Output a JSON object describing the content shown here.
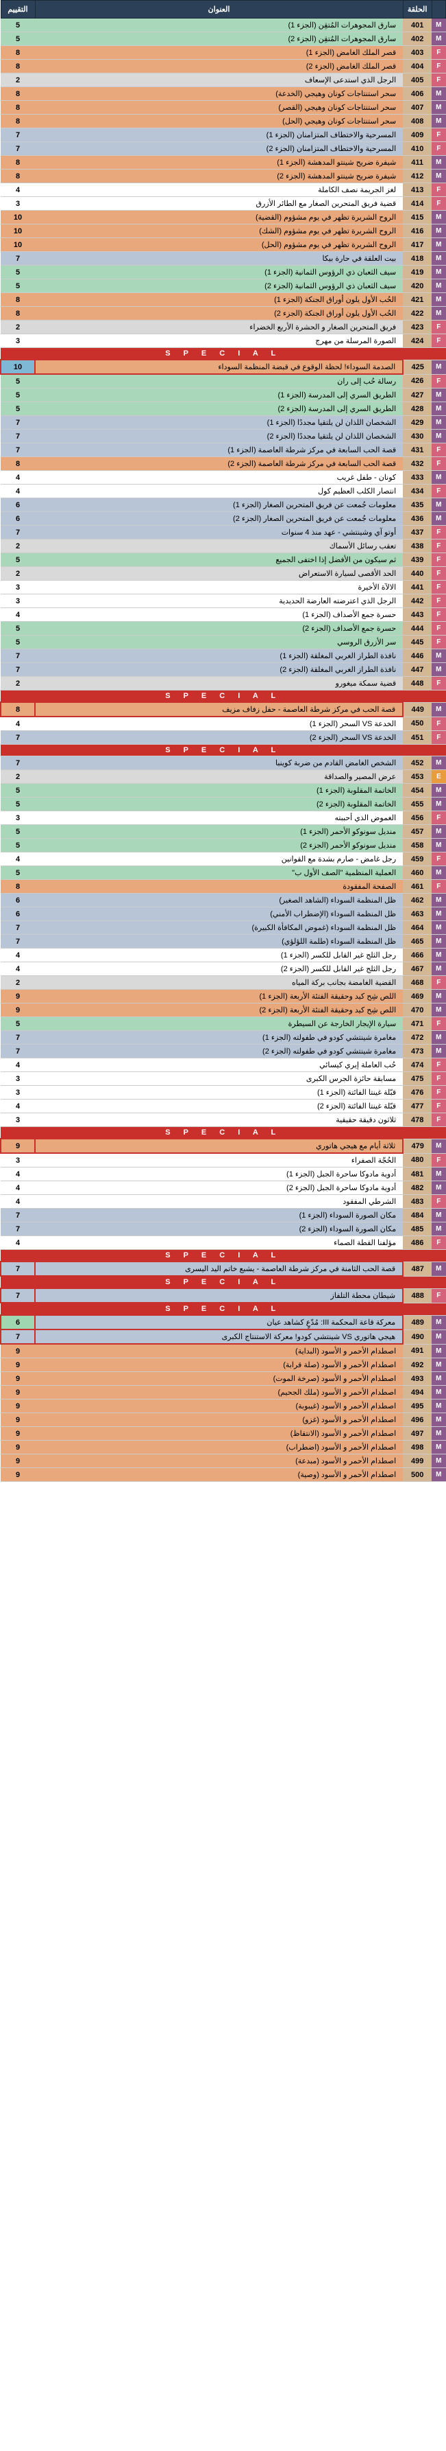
{
  "headers": {
    "ep": "الحلقة",
    "title": "العنوان",
    "rating": "التقييم"
  },
  "special": "S P E C I A L",
  "rows": [
    {
      "ep": 401,
      "m": "M",
      "title": "سارق المجوهرات المُتقِن (الجزء 1)",
      "r": 5,
      "bg": "green"
    },
    {
      "ep": 402,
      "m": "M",
      "title": "سارق المجوهرات المُتقِن (الجزء 2)",
      "r": 5,
      "bg": "green"
    },
    {
      "ep": 403,
      "m": "F",
      "title": "قصر الملك الغامض (الجزء 1)",
      "r": 8,
      "bg": "orange"
    },
    {
      "ep": 404,
      "m": "F",
      "title": "قصر الملك الغامض (الجزء 2)",
      "r": 8,
      "bg": "orange"
    },
    {
      "ep": 405,
      "m": "F",
      "title": "الرجل الذي استدعى الإسعاف",
      "r": 2,
      "bg": "gray"
    },
    {
      "ep": 406,
      "m": "M",
      "title": "سحر استنتاجات كونان وهيجي (الخدعة)",
      "r": 8,
      "bg": "orange"
    },
    {
      "ep": 407,
      "m": "M",
      "title": "سحر استنتاجات كونان وهيجي (القصر)",
      "r": 8,
      "bg": "orange"
    },
    {
      "ep": 408,
      "m": "M",
      "title": "سحر استنتاجات كونان وهيجي (الحل)",
      "r": 8,
      "bg": "orange"
    },
    {
      "ep": 409,
      "m": "F",
      "title": "المسرحية والاختطاف المتزامنان (الجزء 1)",
      "r": 7,
      "bg": "blue"
    },
    {
      "ep": 410,
      "m": "F",
      "title": "المسرحية والاختطاف المتزامنان (الجزء 2)",
      "r": 7,
      "bg": "blue"
    },
    {
      "ep": 411,
      "m": "M",
      "title": "شيفرة ضريح شينتو المدهشة (الجزء 1)",
      "r": 8,
      "bg": "orange"
    },
    {
      "ep": 412,
      "m": "M",
      "title": "شيفرة ضريح شينتو المدهشة (الجزء 2)",
      "r": 8,
      "bg": "orange"
    },
    {
      "ep": 413,
      "m": "F",
      "title": "لغز الجريمة نصف الكاملة",
      "r": 4,
      "bg": "white"
    },
    {
      "ep": 414,
      "m": "F",
      "title": "قضية فريق المتحرين الصغار مع الطائر الأزرق",
      "r": 3,
      "bg": "white"
    },
    {
      "ep": 415,
      "m": "M",
      "title": "الروح الشريرة تظهر في يوم مشؤوم (القضية)",
      "r": 10,
      "bg": "orange"
    },
    {
      "ep": 416,
      "m": "M",
      "title": "الروح الشريرة تظهر في يوم مشؤوم (الشك)",
      "r": 10,
      "bg": "orange"
    },
    {
      "ep": 417,
      "m": "M",
      "title": "الروح الشريرة تظهر في يوم مشؤوم (الحل)",
      "r": 10,
      "bg": "orange"
    },
    {
      "ep": 418,
      "m": "M",
      "title": "بيت العلقة في حارة بيكا",
      "r": 7,
      "bg": "blue"
    },
    {
      "ep": 419,
      "m": "M",
      "title": "سيف الثعبان ذي الرؤوس الثمانية (الجزء 1)",
      "r": 5,
      "bg": "green"
    },
    {
      "ep": 420,
      "m": "M",
      "title": "سيف الثعبان ذي الرؤوس الثمانية (الجزء 2)",
      "r": 5,
      "bg": "green"
    },
    {
      "ep": 421,
      "m": "M",
      "title": "الحُب الأول يلون أوراق الجنكة (الجزء 1)",
      "r": 8,
      "bg": "orange"
    },
    {
      "ep": 422,
      "m": "M",
      "title": "الحُب الأول يلون أوراق الجنكة (الجزء 2)",
      "r": 8,
      "bg": "orange"
    },
    {
      "ep": 423,
      "m": "F",
      "title": "فريق المتحرين الصغار و الحشرة الأربع الخضراء",
      "r": 2,
      "bg": "gray"
    },
    {
      "ep": 424,
      "m": "F",
      "title": "الصورة المرسلة من مهرج",
      "r": 3,
      "bg": "white"
    },
    {
      "special": true
    },
    {
      "ep": 425,
      "m": "M",
      "title": "الصدمة السوداء! لحظة الوقوع في قبضة المنظمة السوداء",
      "r": 10,
      "bg": "orange",
      "hl": true,
      "rb": "blue"
    },
    {
      "ep": 426,
      "m": "F",
      "title": "رسالة حُب إلى ران",
      "r": 5,
      "bg": "green"
    },
    {
      "ep": 427,
      "m": "M",
      "title": "الطريق السري إلى المدرسة (الجزء 1)",
      "r": 5,
      "bg": "green"
    },
    {
      "ep": 428,
      "m": "M",
      "title": "الطريق السري إلى المدرسة (الجزء 2)",
      "r": 5,
      "bg": "green"
    },
    {
      "ep": 429,
      "m": "M",
      "title": "الشخصان اللذان لن يلتقيا مجددًا (الجزء 1)",
      "r": 7,
      "bg": "blue"
    },
    {
      "ep": 430,
      "m": "M",
      "title": "الشخصان اللذان لن يلتقيا مجددًا (الجزء 2)",
      "r": 7,
      "bg": "blue"
    },
    {
      "ep": 431,
      "m": "F",
      "title": "قصة الحب السابعة في مركز شرطة العاصمة (الجزء 1)",
      "r": 7,
      "bg": "blue"
    },
    {
      "ep": 432,
      "m": "F",
      "title": "قصة الحب السابعة في مركز شرطة العاصمة (الجزء 2)",
      "r": 8,
      "bg": "orange"
    },
    {
      "ep": 433,
      "m": "M",
      "title": "كونان - طفل غريب",
      "r": 4,
      "bg": "white"
    },
    {
      "ep": 434,
      "m": "F",
      "title": "انتصار الكلب العظيم كول",
      "r": 4,
      "bg": "white"
    },
    {
      "ep": 435,
      "m": "M",
      "title": "معلومات جُمعت عن فريق المتحرين الصغار (الجزء 1)",
      "r": 6,
      "bg": "blue"
    },
    {
      "ep": 436,
      "m": "M",
      "title": "معلومات جُمعت عن فريق المتحرين الصغار (الجزء 2)",
      "r": 6,
      "bg": "blue"
    },
    {
      "ep": 437,
      "m": "F",
      "title": "أوتو آي وشينتشي - عهد منذ 4 سنوات",
      "r": 7,
      "bg": "blue"
    },
    {
      "ep": 438,
      "m": "F",
      "title": "تعقب رسائل الأسماك",
      "r": 2,
      "bg": "gray"
    },
    {
      "ep": 439,
      "m": "F",
      "title": "ثم سيكون من الأفضل إذا اختفى الجميع",
      "r": 5,
      "bg": "green"
    },
    {
      "ep": 440,
      "m": "F",
      "title": "الحد الأقصى لسيارة الاستعراض",
      "r": 2,
      "bg": "gray"
    },
    {
      "ep": 441,
      "m": "F",
      "title": "الالآة الأخيرة",
      "r": 3,
      "bg": "white"
    },
    {
      "ep": 442,
      "m": "F",
      "title": "الرجل الذي اعترضته العارضة الحديدية",
      "r": 3,
      "bg": "white"
    },
    {
      "ep": 443,
      "m": "F",
      "title": "حسرة جمع الأصداف (الجزء 1)",
      "r": 4,
      "bg": "white"
    },
    {
      "ep": 444,
      "m": "F",
      "title": "حسرة جمع الأصداف (الجزء 2)",
      "r": 5,
      "bg": "green"
    },
    {
      "ep": 445,
      "m": "F",
      "title": "سر الأزرق الروسي",
      "r": 5,
      "bg": "green"
    },
    {
      "ep": 446,
      "m": "M",
      "title": "نافذة الطراز الغربي المغلقة (الجزء 1)",
      "r": 7,
      "bg": "blue"
    },
    {
      "ep": 447,
      "m": "M",
      "title": "نافذة الطراز الغربي المغلقة (الجزء 2)",
      "r": 7,
      "bg": "blue"
    },
    {
      "ep": 448,
      "m": "F",
      "title": "قضية سمكة ميغورو",
      "r": 2,
      "bg": "gray"
    },
    {
      "special": true
    },
    {
      "ep": 449,
      "m": "M",
      "title": "قصة الحب في مركز شرطة العاصمة - حفل زفاف مزيف",
      "r": 8,
      "bg": "orange",
      "hl": true
    },
    {
      "ep": 450,
      "m": "F",
      "title": "الخدعة VS السحر (الجزء 1)",
      "r": 4,
      "bg": "white"
    },
    {
      "ep": 451,
      "m": "F",
      "title": "الخدعة VS السحر (الجزء 2)",
      "r": 7,
      "bg": "blue"
    },
    {
      "special": true
    },
    {
      "ep": 452,
      "m": "M",
      "title": "الشخص الغامض القادم من ضربة كوينبا",
      "r": 7,
      "bg": "blue"
    },
    {
      "ep": 453,
      "m": "E",
      "title": "عرض المصير والصداقة",
      "r": 2,
      "bg": "gray"
    },
    {
      "ep": 454,
      "m": "M",
      "title": "الخاتمة المقلوبة (الجزء 1)",
      "r": 5,
      "bg": "green"
    },
    {
      "ep": 455,
      "m": "M",
      "title": "الخاتمة المقلوبة (الجزء 2)",
      "r": 5,
      "bg": "green"
    },
    {
      "ep": 456,
      "m": "F",
      "title": "الغموض الذي أحببته",
      "r": 3,
      "bg": "white"
    },
    {
      "ep": 457,
      "m": "M",
      "title": "منديل سونوكو الأحمر (الجزء 1)",
      "r": 5,
      "bg": "green"
    },
    {
      "ep": 458,
      "m": "M",
      "title": "منديل سونوكو الأحمر (الجزء 2)",
      "r": 5,
      "bg": "green"
    },
    {
      "ep": 459,
      "m": "F",
      "title": "رجل غامض - صارم بشدة مع القوانين",
      "r": 4,
      "bg": "white"
    },
    {
      "ep": 460,
      "m": "M",
      "title": "العملية المنظمية \"الصف الأول ب\"",
      "r": 5,
      "bg": "green"
    },
    {
      "ep": 461,
      "m": "F",
      "title": "الصفحة المفقودة",
      "r": 8,
      "bg": "orange"
    },
    {
      "ep": 462,
      "m": "M",
      "title": "ظل المنظمة السوداء (الشاهد الصغير)",
      "r": 6,
      "bg": "blue"
    },
    {
      "ep": 463,
      "m": "M",
      "title": "ظل المنظمة السوداء (الإضطراب الأمني)",
      "r": 6,
      "bg": "blue"
    },
    {
      "ep": 464,
      "m": "M",
      "title": "ظل المنظمة السوداء (غموض المكافأة الكبيرة)",
      "r": 7,
      "bg": "blue"
    },
    {
      "ep": 465,
      "m": "M",
      "title": "ظل المنظمة السوداء (طلمة اللؤلؤي)",
      "r": 7,
      "bg": "blue"
    },
    {
      "ep": 466,
      "m": "M",
      "title": "رجل الثلج غير القابل للكسر (الجزء 1)",
      "r": 4,
      "bg": "white"
    },
    {
      "ep": 467,
      "m": "M",
      "title": "رجل الثلج غير القابل للكسر (الجزء 2)",
      "r": 4,
      "bg": "white"
    },
    {
      "ep": 468,
      "m": "F",
      "title": "القضية الغامضة بجانب بركة المياه",
      "r": 2,
      "bg": "gray"
    },
    {
      "ep": 469,
      "m": "M",
      "title": "اللص شِح كيد وحقيقة الفتئة الأربعة (الجزء 1)",
      "r": 9,
      "bg": "orange"
    },
    {
      "ep": 470,
      "m": "M",
      "title": "اللص شِح كيد وحقيقة الفتئة الأربعة (الجزء 2)",
      "r": 9,
      "bg": "orange"
    },
    {
      "ep": 471,
      "m": "F",
      "title": "سيارة الإيجار الخارجة عن السيطرة",
      "r": 5,
      "bg": "green"
    },
    {
      "ep": 472,
      "m": "M",
      "title": "مغامرة شينتشي كودو في طفولته (الجزء 1)",
      "r": 7,
      "bg": "blue"
    },
    {
      "ep": 473,
      "m": "M",
      "title": "مغامرة شينتشي كودو في طفولته (الجزء 2)",
      "r": 7,
      "bg": "blue"
    },
    {
      "ep": 474,
      "m": "F",
      "title": "حُب العاملة إيري كيسائي",
      "r": 4,
      "bg": "white"
    },
    {
      "ep": 475,
      "m": "F",
      "title": "مسابقة حائزة الجرس الكبرى",
      "r": 3,
      "bg": "white"
    },
    {
      "ep": 476,
      "m": "F",
      "title": "قبّلة غينتا الفائتة (الجزء 1)",
      "r": 3,
      "bg": "white"
    },
    {
      "ep": 477,
      "m": "F",
      "title": "قبّلة غينتا الفائتة (الجزء 2)",
      "r": 4,
      "bg": "white"
    },
    {
      "ep": 478,
      "m": "F",
      "title": "ثلاثون دقيقة حقيقية",
      "r": 3,
      "bg": "white"
    },
    {
      "special": true
    },
    {
      "ep": 479,
      "m": "M",
      "title": "ثلاثة أيام مع هيجي هاتوري",
      "r": 9,
      "bg": "orange",
      "hl": true
    },
    {
      "ep": 480,
      "m": "F",
      "title": "الحُجّة الصفراء",
      "r": 3,
      "bg": "white"
    },
    {
      "ep": 481,
      "m": "M",
      "title": "أدوية مادوكا ساحرة الجبل (الجزء 1)",
      "r": 4,
      "bg": "white"
    },
    {
      "ep": 482,
      "m": "M",
      "title": "أدوية مادوكا ساحرة الجبل (الجزء 2)",
      "r": 4,
      "bg": "white"
    },
    {
      "ep": 483,
      "m": "F",
      "title": "الشرطي المفقود",
      "r": 4,
      "bg": "white"
    },
    {
      "ep": 484,
      "m": "M",
      "title": "مكان الصورة السوداء (الجزء 1)",
      "r": 7,
      "bg": "blue"
    },
    {
      "ep": 485,
      "m": "M",
      "title": "مكان الصورة السوداء (الجزء 2)",
      "r": 7,
      "bg": "blue"
    },
    {
      "ep": 486,
      "m": "F",
      "title": "مؤلفنا القطة الصماء",
      "r": 4,
      "bg": "white"
    },
    {
      "special": true
    },
    {
      "ep": 487,
      "m": "M",
      "title": "قصة الحب الثامنة في مركز شرطة العاصمة - يشبع خاتم اليد اليسرى",
      "r": 7,
      "bg": "blue",
      "hl": true
    },
    {
      "special": true
    },
    {
      "ep": 488,
      "m": "F",
      "title": "شيطان محطة التلفاز",
      "r": 7,
      "bg": "blue",
      "hl": true
    },
    {
      "special": true
    },
    {
      "ep": 489,
      "m": "M",
      "title": "معركة قاعة المحكمة III: مُدّعٍ كشاهد عيان",
      "r": 6,
      "bg": "blue",
      "hl": true,
      "rb": "green"
    },
    {
      "ep": 490,
      "m": "M",
      "title": "هيجي هاتوري VS شينتشي كودو! معركة الاستنتاج الكبرى",
      "r": 7,
      "bg": "blue",
      "hl": true
    },
    {
      "ep": 491,
      "m": "M",
      "title": "اصطدام الأحمر و الأسود (البداية)",
      "r": 9,
      "bg": "orange"
    },
    {
      "ep": 492,
      "m": "M",
      "title": "اصطدام الأحمر و الأسود (صلة قرابة)",
      "r": 9,
      "bg": "orange"
    },
    {
      "ep": 493,
      "m": "M",
      "title": "اصطدام الأحمر و الأسود (صرخة الموت)",
      "r": 9,
      "bg": "orange"
    },
    {
      "ep": 494,
      "m": "M",
      "title": "اصطدام الأحمر و الأسود (ملك الجحيم)",
      "r": 9,
      "bg": "orange"
    },
    {
      "ep": 495,
      "m": "M",
      "title": "اصطدام الأحمر و الأسود (غيبوبة)",
      "r": 9,
      "bg": "orange"
    },
    {
      "ep": 496,
      "m": "M",
      "title": "اصطدام الأحمر و الأسود (غزو)",
      "r": 9,
      "bg": "orange"
    },
    {
      "ep": 497,
      "m": "M",
      "title": "اصطدام الأحمر و الأسود (الانتقاظ)",
      "r": 9,
      "bg": "orange"
    },
    {
      "ep": 498,
      "m": "M",
      "title": "اصطدام الأحمر و الأسود (اضطراب)",
      "r": 9,
      "bg": "orange"
    },
    {
      "ep": 499,
      "m": "M",
      "title": "اصطدام الأحمر و الأسود (مبدعة)",
      "r": 9,
      "bg": "orange"
    },
    {
      "ep": 500,
      "m": "M",
      "title": "اصطدام الأحمر و الأسود (وصية)",
      "r": 9,
      "bg": "orange"
    }
  ]
}
